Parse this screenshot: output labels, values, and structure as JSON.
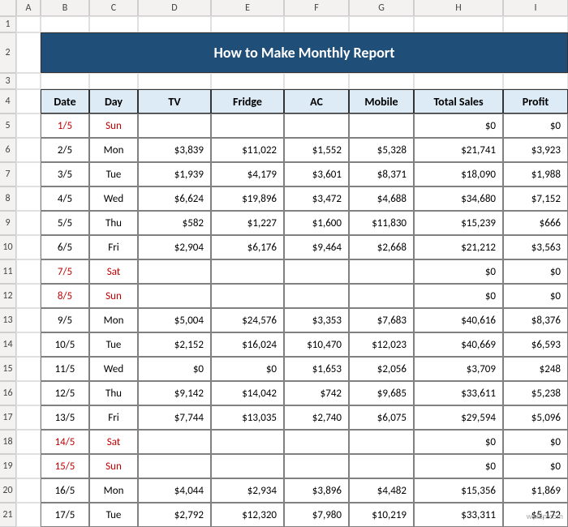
{
  "col_headers": [
    "A",
    "B",
    "C",
    "D",
    "E",
    "F",
    "G",
    "H",
    "I"
  ],
  "row_headers": [
    "1",
    "2",
    "3",
    "4",
    "5",
    "6",
    "7",
    "8",
    "9",
    "10",
    "11",
    "12",
    "13",
    "14",
    "15",
    "16",
    "17",
    "18",
    "19",
    "20",
    "21"
  ],
  "title": "How to Make Monthly Report",
  "headers": [
    "Date",
    "Day",
    "TV",
    "Fridge",
    "AC",
    "Mobile",
    "Total Sales",
    "Profit"
  ],
  "rows": [
    {
      "date": "1/5",
      "day": "Sun",
      "tv": "",
      "fridge": "",
      "ac": "",
      "mobile": "",
      "total": "$0",
      "profit": "$0",
      "weekend": true
    },
    {
      "date": "2/5",
      "day": "Mon",
      "tv": "$3,839",
      "fridge": "$11,022",
      "ac": "$1,552",
      "mobile": "$5,328",
      "total": "$21,741",
      "profit": "$3,923",
      "weekend": false
    },
    {
      "date": "3/5",
      "day": "Tue",
      "tv": "$1,939",
      "fridge": "$4,179",
      "ac": "$3,601",
      "mobile": "$8,371",
      "total": "$18,090",
      "profit": "$1,988",
      "weekend": false
    },
    {
      "date": "4/5",
      "day": "Wed",
      "tv": "$6,624",
      "fridge": "$19,896",
      "ac": "$3,472",
      "mobile": "$4,688",
      "total": "$34,680",
      "profit": "$7,152",
      "weekend": false
    },
    {
      "date": "5/5",
      "day": "Thu",
      "tv": "$582",
      "fridge": "$1,227",
      "ac": "$1,600",
      "mobile": "$11,830",
      "total": "$15,239",
      "profit": "$666",
      "weekend": false
    },
    {
      "date": "6/5",
      "day": "Fri",
      "tv": "$2,904",
      "fridge": "$6,176",
      "ac": "$9,464",
      "mobile": "$2,668",
      "total": "$21,212",
      "profit": "$3,563",
      "weekend": false
    },
    {
      "date": "7/5",
      "day": "Sat",
      "tv": "",
      "fridge": "",
      "ac": "",
      "mobile": "",
      "total": "$0",
      "profit": "$0",
      "weekend": true
    },
    {
      "date": "8/5",
      "day": "Sun",
      "tv": "",
      "fridge": "",
      "ac": "",
      "mobile": "",
      "total": "$0",
      "profit": "$0",
      "weekend": true
    },
    {
      "date": "9/5",
      "day": "Mon",
      "tv": "$5,004",
      "fridge": "$24,576",
      "ac": "$3,353",
      "mobile": "$7,683",
      "total": "$40,616",
      "profit": "$8,376",
      "weekend": false
    },
    {
      "date": "10/5",
      "day": "Tue",
      "tv": "$2,152",
      "fridge": "$16,024",
      "ac": "$10,470",
      "mobile": "$12,023",
      "total": "$40,669",
      "profit": "$6,593",
      "weekend": false
    },
    {
      "date": "11/5",
      "day": "Wed",
      "tv": "$0",
      "fridge": "$0",
      "ac": "$1,653",
      "mobile": "$2,056",
      "total": "$3,709",
      "profit": "$248",
      "weekend": false
    },
    {
      "date": "12/5",
      "day": "Thu",
      "tv": "$9,142",
      "fridge": "$14,042",
      "ac": "$742",
      "mobile": "$9,685",
      "total": "$33,611",
      "profit": "$5,238",
      "weekend": false
    },
    {
      "date": "13/5",
      "day": "Fri",
      "tv": "$7,744",
      "fridge": "$13,035",
      "ac": "$2,740",
      "mobile": "$6,075",
      "total": "$29,594",
      "profit": "$5,096",
      "weekend": false
    },
    {
      "date": "14/5",
      "day": "Sat",
      "tv": "",
      "fridge": "",
      "ac": "",
      "mobile": "",
      "total": "$0",
      "profit": "$0",
      "weekend": true
    },
    {
      "date": "15/5",
      "day": "Sun",
      "tv": "",
      "fridge": "",
      "ac": "",
      "mobile": "",
      "total": "$0",
      "profit": "$0",
      "weekend": true
    },
    {
      "date": "16/5",
      "day": "Mon",
      "tv": "$4,044",
      "fridge": "$2,934",
      "ac": "$3,896",
      "mobile": "$4,482",
      "total": "$15,356",
      "profit": "$1,869",
      "weekend": false
    },
    {
      "date": "17/5",
      "day": "Tue",
      "tv": "$2,792",
      "fridge": "$12,320",
      "ac": "$7,980",
      "mobile": "$10,219",
      "total": "$33,311",
      "profit": "$5,172",
      "weekend": false
    }
  ],
  "watermark": "wsxdn.com",
  "colors": {
    "title_bg": "#1f4e78",
    "title_fg": "#ffffff",
    "header_bg": "#ddebf7",
    "weekend_fg": "#c00000",
    "border": "#808080",
    "grid_border": "#d0cece",
    "grid_bg": "#f3f2f1"
  }
}
